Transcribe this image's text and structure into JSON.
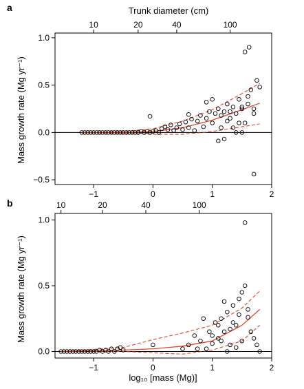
{
  "chart_data": [
    {
      "type": "scatter",
      "panel_label": "a",
      "top_axis_label": "Trunk diameter (cm)",
      "top_ticks": [
        "10",
        "20",
        "40",
        "100"
      ],
      "top_tick_at_log10_mass": [
        -1.0,
        -0.25,
        0.4,
        1.3
      ],
      "ylabel": "Mass growth rate (Mg yr⁻¹)",
      "xlim": [
        -1.65,
        2.0
      ],
      "ylim": [
        -0.55,
        1.05
      ],
      "x_ticks": [
        "−1",
        "0",
        "1",
        "2"
      ],
      "y_ticks": [
        "−0.5",
        "0.0",
        "0.5",
        "1.0"
      ],
      "points": [
        [
          -1.2,
          0.0
        ],
        [
          -1.15,
          0.0
        ],
        [
          -1.1,
          0.0
        ],
        [
          -1.05,
          0.0
        ],
        [
          -1.0,
          0.0
        ],
        [
          -0.95,
          0.0
        ],
        [
          -0.9,
          0.0
        ],
        [
          -0.85,
          0.0
        ],
        [
          -0.8,
          0.0
        ],
        [
          -0.75,
          0.0
        ],
        [
          -0.7,
          0.0
        ],
        [
          -0.65,
          0.0
        ],
        [
          -0.6,
          0.0
        ],
        [
          -0.55,
          0.0
        ],
        [
          -0.5,
          0.0
        ],
        [
          -0.45,
          0.0
        ],
        [
          -0.4,
          0.0
        ],
        [
          -0.35,
          0.0
        ],
        [
          -0.3,
          0.0
        ],
        [
          -0.25,
          0.0
        ],
        [
          -0.2,
          0.01
        ],
        [
          -0.15,
          0.0
        ],
        [
          -0.1,
          0.01
        ],
        [
          -0.05,
          0.0
        ],
        [
          0.0,
          0.01
        ],
        [
          0.05,
          0.02
        ],
        [
          0.1,
          0.0
        ],
        [
          0.15,
          0.04
        ],
        [
          0.2,
          0.06
        ],
        [
          0.25,
          0.03
        ],
        [
          0.3,
          0.08
        ],
        [
          0.35,
          0.02
        ],
        [
          0.4,
          0.05
        ],
        [
          0.45,
          0.09
        ],
        [
          0.5,
          0.03
        ],
        [
          0.55,
          0.11
        ],
        [
          0.6,
          0.05
        ],
        [
          0.65,
          0.14
        ],
        [
          0.7,
          0.02
        ],
        [
          0.75,
          0.12
        ],
        [
          0.8,
          0.18
        ],
        [
          0.85,
          0.06
        ],
        [
          0.9,
          0.15
        ],
        [
          0.95,
          0.22
        ],
        [
          1.0,
          0.1
        ],
        [
          1.05,
          0.2
        ],
        [
          1.1,
          0.25
        ],
        [
          1.15,
          0.05
        ],
        [
          1.2,
          0.22
        ],
        [
          1.25,
          0.3
        ],
        [
          1.3,
          0.15
        ],
        [
          1.35,
          0.27
        ],
        [
          1.4,
          0.2
        ],
        [
          1.45,
          0.35
        ],
        [
          1.5,
          0.25
        ],
        [
          1.55,
          0.1
        ],
        [
          1.6,
          0.3
        ],
        [
          1.65,
          0.45
        ],
        [
          1.7,
          0.2
        ],
        [
          1.75,
          0.55
        ],
        [
          1.8,
          0.48
        ],
        [
          1.55,
          0.85
        ],
        [
          1.62,
          0.9
        ],
        [
          1.7,
          -0.44
        ],
        [
          -0.05,
          0.17
        ],
        [
          1.2,
          -0.07
        ],
        [
          1.1,
          -0.09
        ],
        [
          1.5,
          0.0
        ],
        [
          1.4,
          0.0
        ],
        [
          0.6,
          0.19
        ],
        [
          1.0,
          0.35
        ],
        [
          0.9,
          0.32
        ],
        [
          1.3,
          0.22
        ],
        [
          1.35,
          0.05
        ],
        [
          1.6,
          0.38
        ],
        [
          1.7,
          0.25
        ],
        [
          1.5,
          0.27
        ],
        [
          1.45,
          0.1
        ],
        [
          1.25,
          0.12
        ],
        [
          1.15,
          0.18
        ]
      ],
      "fit_mid": [
        [
          -1.2,
          0.0
        ],
        [
          -0.5,
          0.0
        ],
        [
          0.0,
          0.01
        ],
        [
          0.5,
          0.05
        ],
        [
          1.0,
          0.13
        ],
        [
          1.5,
          0.24
        ],
        [
          1.8,
          0.31
        ]
      ],
      "fit_upper": [
        [
          -1.2,
          0.0
        ],
        [
          -0.5,
          0.01
        ],
        [
          0.0,
          0.04
        ],
        [
          0.5,
          0.12
        ],
        [
          1.0,
          0.24
        ],
        [
          1.5,
          0.41
        ],
        [
          1.8,
          0.52
        ]
      ],
      "fit_lower": [
        [
          -1.2,
          0.0
        ],
        [
          -0.5,
          -0.01
        ],
        [
          0.0,
          -0.02
        ],
        [
          0.5,
          -0.02
        ],
        [
          1.0,
          0.01
        ],
        [
          1.5,
          0.06
        ],
        [
          1.8,
          0.09
        ]
      ],
      "colors": {
        "points": "#000000",
        "fit": "#d9472c"
      }
    },
    {
      "type": "scatter",
      "panel_label": "b",
      "top_ticks": [
        "10",
        "20",
        "40",
        "100"
      ],
      "top_tick_at_log10_mass": [
        -1.55,
        -0.85,
        -0.12,
        0.78
      ],
      "ylabel": "Mass growth rate (Mg yr⁻¹)",
      "xlabel": "log₁₀ [mass (Mg)]",
      "xlim": [
        -1.65,
        2.0
      ],
      "ylim": [
        -0.05,
        1.05
      ],
      "x_ticks": [
        "−1",
        "0",
        "1",
        "2"
      ],
      "y_ticks": [
        "0.0",
        "0.5",
        "1.0"
      ],
      "points": [
        [
          -1.55,
          0.0
        ],
        [
          -1.5,
          0.0
        ],
        [
          -1.45,
          0.0
        ],
        [
          -1.4,
          0.0
        ],
        [
          -1.35,
          0.0
        ],
        [
          -1.3,
          0.0
        ],
        [
          -1.25,
          0.0
        ],
        [
          -1.2,
          0.0
        ],
        [
          -1.15,
          0.0
        ],
        [
          -1.1,
          0.0
        ],
        [
          -1.05,
          0.0
        ],
        [
          -1.0,
          0.0
        ],
        [
          -0.95,
          0.0
        ],
        [
          -0.9,
          0.01
        ],
        [
          -0.85,
          0.0
        ],
        [
          -0.8,
          0.01
        ],
        [
          -0.75,
          0.0
        ],
        [
          -0.7,
          0.02
        ],
        [
          -0.65,
          0.0
        ],
        [
          -0.6,
          0.02
        ],
        [
          -0.55,
          0.03
        ],
        [
          -0.5,
          0.01
        ],
        [
          0.0,
          0.05
        ],
        [
          0.5,
          0.02
        ],
        [
          0.6,
          0.05
        ],
        [
          0.7,
          0.12
        ],
        [
          0.8,
          0.08
        ],
        [
          0.9,
          0.02
        ],
        [
          0.95,
          0.15
        ],
        [
          1.0,
          0.06
        ],
        [
          1.05,
          0.22
        ],
        [
          1.1,
          0.1
        ],
        [
          1.15,
          0.25
        ],
        [
          1.2,
          0.15
        ],
        [
          1.25,
          0.3
        ],
        [
          1.3,
          0.05
        ],
        [
          1.35,
          0.35
        ],
        [
          1.4,
          0.2
        ],
        [
          1.45,
          0.28
        ],
        [
          1.5,
          0.45
        ],
        [
          1.55,
          0.5
        ],
        [
          1.6,
          0.32
        ],
        [
          1.65,
          0.15
        ],
        [
          1.7,
          0.1
        ],
        [
          1.75,
          0.05
        ],
        [
          1.8,
          0.0
        ],
        [
          1.55,
          0.98
        ],
        [
          1.45,
          0.4
        ],
        [
          1.35,
          0.22
        ],
        [
          1.2,
          0.38
        ],
        [
          1.3,
          0.17
        ],
        [
          1.1,
          0.2
        ],
        [
          1.0,
          0.12
        ],
        [
          0.85,
          0.25
        ],
        [
          1.25,
          0.0
        ],
        [
          1.4,
          0.03
        ],
        [
          1.5,
          0.08
        ],
        [
          0.75,
          0.02
        ],
        [
          1.6,
          0.26
        ],
        [
          1.15,
          0.08
        ]
      ],
      "fit_mid": [
        [
          -1.55,
          0.0
        ],
        [
          -0.5,
          0.01
        ],
        [
          0.0,
          0.02
        ],
        [
          0.5,
          0.04
        ],
        [
          1.0,
          0.08
        ],
        [
          1.5,
          0.2
        ],
        [
          1.8,
          0.32
        ]
      ],
      "fit_upper": [
        [
          -1.55,
          0.0
        ],
        [
          -0.5,
          0.03
        ],
        [
          0.0,
          0.09
        ],
        [
          0.5,
          0.14
        ],
        [
          1.0,
          0.2
        ],
        [
          1.5,
          0.33
        ],
        [
          1.8,
          0.46
        ]
      ],
      "fit_lower": [
        [
          -1.55,
          0.0
        ],
        [
          -0.5,
          0.0
        ],
        [
          0.0,
          -0.01
        ],
        [
          0.5,
          -0.02
        ],
        [
          1.0,
          0.01
        ],
        [
          1.5,
          0.08
        ],
        [
          1.8,
          0.2
        ]
      ],
      "colors": {
        "points": "#000000",
        "fit": "#d9472c"
      }
    }
  ]
}
